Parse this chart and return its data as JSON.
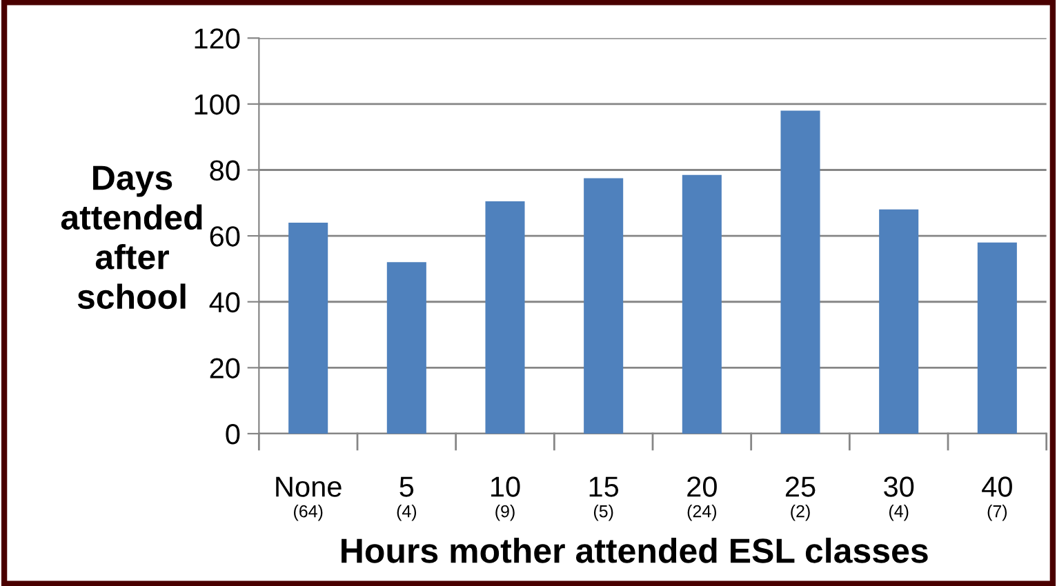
{
  "chart_data": {
    "type": "bar",
    "xlabel": "Hours mother attended ESL classes",
    "ylabel": "Days\nattended\nafter\nschool",
    "categories": [
      "None\n(64)",
      "5\n(4)",
      "10\n(9)",
      "15\n(5)",
      "20\n(24)",
      "25\n(2)",
      "30\n(4)",
      "40\n(7)"
    ],
    "values": [
      64,
      52,
      70.5,
      77.5,
      78.5,
      98,
      68,
      58
    ],
    "color": "#4f81bd",
    "ylim": [
      0,
      120
    ],
    "yticks": [
      0,
      20,
      40,
      60,
      80,
      100,
      120
    ],
    "grid": "y"
  }
}
